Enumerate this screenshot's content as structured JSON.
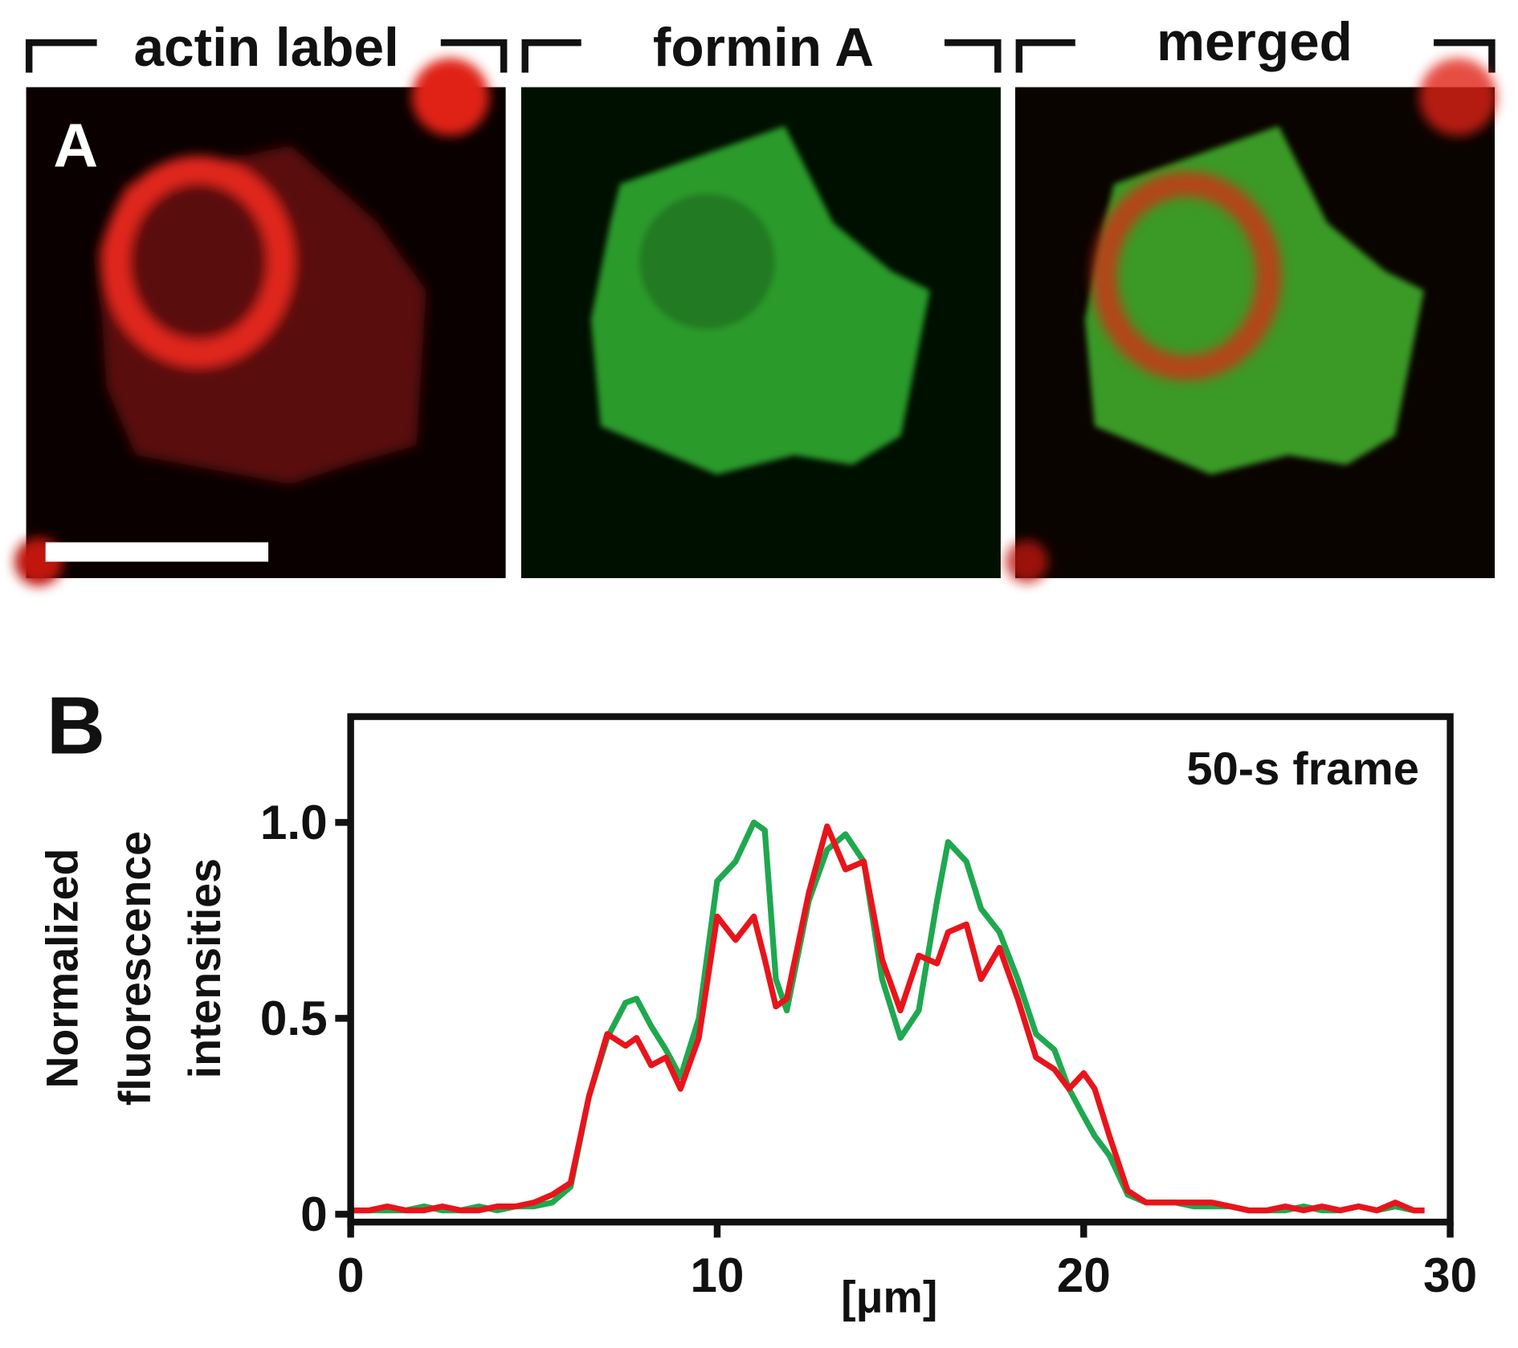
{
  "figure": {
    "panel_a": {
      "label": "A",
      "headers": [
        "actin label",
        "formin A",
        "merged"
      ]
    }
  },
  "chart_data": {
    "type": "line",
    "panel_label": "B",
    "annotation": "50-s frame",
    "xlabel": "[μm]",
    "ylabel": [
      "Normalized",
      "fluorescence",
      "intensities"
    ],
    "xlim": [
      0,
      30
    ],
    "ylim": [
      -0.02,
      1.27
    ],
    "xticks": [
      0,
      10,
      20,
      30
    ],
    "yticks": [
      0,
      0.5,
      {
        "value": 1,
        "label": "1.0"
      }
    ],
    "x": [
      0,
      0.5,
      1,
      1.5,
      2,
      2.5,
      3,
      3.5,
      4,
      4.5,
      5,
      5.5,
      6,
      6.5,
      7,
      7.5,
      7.8,
      8.2,
      8.6,
      9,
      9.5,
      10,
      10.5,
      11,
      11.3,
      11.6,
      11.9,
      12.5,
      13,
      13.5,
      14,
      14.5,
      15,
      15.5,
      16,
      16.3,
      16.8,
      17.2,
      17.7,
      18.2,
      18.7,
      19.2,
      19.6,
      20,
      20.3,
      20.7,
      21.2,
      21.7,
      22.5,
      23,
      23.5,
      24,
      24.5,
      25,
      25.5,
      26,
      26.5,
      27,
      27.5,
      28,
      28.5,
      29,
      29.3
    ],
    "series": [
      {
        "color": "#1fa84f",
        "values": [
          0.01,
          0.01,
          0.01,
          0.01,
          0.02,
          0.01,
          0.01,
          0.02,
          0.01,
          0.02,
          0.02,
          0.03,
          0.07,
          0.3,
          0.45,
          0.54,
          0.55,
          0.48,
          0.42,
          0.35,
          0.5,
          0.85,
          0.9,
          1.0,
          0.98,
          0.6,
          0.52,
          0.8,
          0.93,
          0.97,
          0.9,
          0.6,
          0.45,
          0.52,
          0.8,
          0.95,
          0.9,
          0.78,
          0.72,
          0.6,
          0.46,
          0.42,
          0.32,
          0.25,
          0.2,
          0.15,
          0.05,
          0.03,
          0.03,
          0.02,
          0.02,
          0.02,
          0.01,
          0.01,
          0.01,
          0.02,
          0.01,
          0.01,
          0.02,
          0.01,
          0.02,
          0.01,
          0.01
        ]
      },
      {
        "color": "#e8141c",
        "values": [
          0.01,
          0.01,
          0.02,
          0.01,
          0.01,
          0.02,
          0.01,
          0.01,
          0.02,
          0.02,
          0.03,
          0.05,
          0.08,
          0.3,
          0.46,
          0.43,
          0.45,
          0.38,
          0.4,
          0.32,
          0.45,
          0.76,
          0.7,
          0.76,
          0.65,
          0.53,
          0.55,
          0.82,
          0.99,
          0.88,
          0.9,
          0.65,
          0.52,
          0.66,
          0.64,
          0.72,
          0.74,
          0.6,
          0.68,
          0.55,
          0.4,
          0.37,
          0.32,
          0.36,
          0.32,
          0.2,
          0.06,
          0.03,
          0.03,
          0.03,
          0.03,
          0.02,
          0.01,
          0.01,
          0.02,
          0.01,
          0.02,
          0.01,
          0.02,
          0.01,
          0.03,
          0.01,
          0.01
        ]
      }
    ]
  }
}
